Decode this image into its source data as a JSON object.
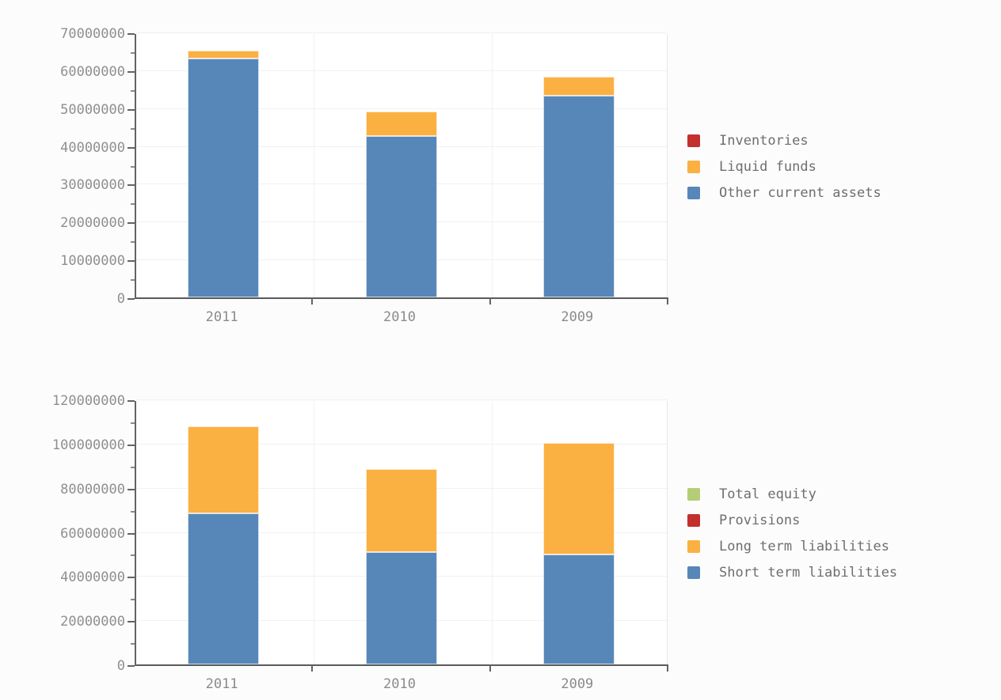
{
  "page": {
    "background": "#fcfcfc"
  },
  "colors": {
    "blue": "#5687b8",
    "orange": "#fbb042",
    "red": "#c2312d",
    "green": "#b5cd76",
    "grid": "#f1f1f1",
    "axis": "#5f5f5f",
    "tick_text": "#8f8f8f",
    "legend_text": "#6e6e6e"
  },
  "chart_data": [
    {
      "type": "bar",
      "stacked": true,
      "title": "",
      "xlabel": "",
      "ylabel": "",
      "grid": true,
      "legend_position": "right",
      "categories": [
        "2011",
        "2010",
        "2009"
      ],
      "series": [
        {
          "name": "Other current assets",
          "color": "#5687b8",
          "values": [
            63100000,
            42600000,
            53200000
          ]
        },
        {
          "name": "Liquid funds",
          "color": "#fbb042",
          "values": [
            2100000,
            6600000,
            5200000
          ]
        },
        {
          "name": "Inventories",
          "color": "#c2312d",
          "values": [
            0,
            0,
            0
          ]
        }
      ],
      "legend": [
        {
          "label": "Inventories",
          "color": "#c2312d"
        },
        {
          "label": "Liquid funds",
          "color": "#fbb042"
        },
        {
          "label": "Other current assets",
          "color": "#5687b8"
        }
      ],
      "ylim": [
        0,
        70000000
      ],
      "yticks": [
        0,
        10000000,
        20000000,
        30000000,
        40000000,
        50000000,
        60000000,
        70000000
      ],
      "ytick_labels": [
        "0",
        "10000000",
        "20000000",
        "30000000",
        "40000000",
        "50000000",
        "60000000",
        "70000000"
      ],
      "minor_tick_step": 5000000
    },
    {
      "type": "bar",
      "stacked": true,
      "title": "",
      "xlabel": "",
      "ylabel": "",
      "grid": true,
      "legend_position": "right",
      "categories": [
        "2011",
        "2010",
        "2009"
      ],
      "series": [
        {
          "name": "Short term liabilities",
          "color": "#5687b8",
          "values": [
            68300000,
            50800000,
            49800000
          ]
        },
        {
          "name": "Long term liabilities",
          "color": "#fbb042",
          "values": [
            39500000,
            37600000,
            50500000
          ]
        },
        {
          "name": "Provisions",
          "color": "#c2312d",
          "values": [
            0,
            0,
            0
          ]
        },
        {
          "name": "Total equity",
          "color": "#b5cd76",
          "values": [
            0,
            0,
            0
          ]
        }
      ],
      "legend": [
        {
          "label": "Total equity",
          "color": "#b5cd76"
        },
        {
          "label": "Provisions",
          "color": "#c2312d"
        },
        {
          "label": "Long term liabilities",
          "color": "#fbb042"
        },
        {
          "label": "Short term liabilities",
          "color": "#5687b8"
        }
      ],
      "ylim": [
        0,
        120000000
      ],
      "yticks": [
        0,
        20000000,
        40000000,
        60000000,
        80000000,
        100000000,
        120000000
      ],
      "ytick_labels": [
        "0",
        "20000000",
        "40000000",
        "60000000",
        "80000000",
        "100000000",
        "120000000"
      ],
      "minor_tick_step": 10000000
    }
  ]
}
